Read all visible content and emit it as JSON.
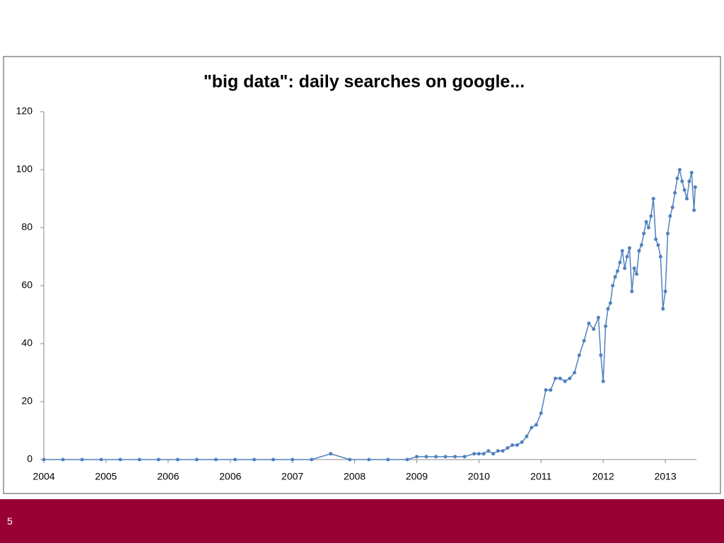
{
  "chart_data": {
    "type": "line",
    "title": "\"big data\": daily searches on google...",
    "x": [
      0,
      16,
      32,
      48,
      64,
      80,
      96,
      112,
      128,
      144,
      160,
      176,
      192,
      208,
      224,
      240,
      256,
      272,
      288,
      304,
      312,
      320,
      328,
      336,
      344,
      352,
      360,
      364,
      368,
      372,
      376,
      380,
      384,
      388,
      392,
      396,
      400,
      404,
      408,
      412,
      416,
      420,
      424,
      428,
      432,
      436,
      440,
      444,
      448,
      452,
      456,
      460,
      464,
      466,
      468,
      470,
      472,
      474,
      476,
      478,
      480,
      482,
      484,
      486,
      488,
      490,
      492,
      494,
      496,
      498,
      500,
      502,
      504,
      506,
      508,
      510,
      512,
      514,
      516,
      518,
      520,
      522,
      524,
      526,
      528,
      530,
      532,
      534,
      536,
      538,
      540,
      542,
      544,
      545
    ],
    "values": [
      0,
      0,
      0,
      0,
      0,
      0,
      0,
      0,
      0,
      0,
      0,
      0,
      0,
      0,
      0,
      2,
      0,
      0,
      0,
      0,
      1,
      1,
      1,
      1,
      1,
      1,
      2,
      2,
      2,
      3,
      2,
      3,
      3,
      4,
      5,
      5,
      6,
      8,
      11,
      12,
      16,
      24,
      24,
      28,
      28,
      27,
      28,
      30,
      36,
      41,
      47,
      45,
      49,
      36,
      27,
      46,
      52,
      54,
      60,
      63,
      65,
      68,
      72,
      66,
      70,
      73,
      58,
      66,
      64,
      72,
      74,
      78,
      82,
      80,
      84,
      90,
      76,
      74,
      70,
      52,
      58,
      78,
      84,
      87,
      92,
      97,
      100,
      96,
      93,
      90,
      96,
      99,
      86,
      94
    ],
    "color": "#4f81bd",
    "xlim": [
      0,
      546
    ],
    "xticks": [
      {
        "value": 0,
        "label": "2004"
      },
      {
        "value": 52,
        "label": "2005"
      },
      {
        "value": 104,
        "label": "2006"
      },
      {
        "value": 156,
        "label": "2006"
      },
      {
        "value": 208,
        "label": "2007"
      },
      {
        "value": 260,
        "label": "2008"
      },
      {
        "value": 312,
        "label": "2009"
      },
      {
        "value": 364,
        "label": "2010"
      },
      {
        "value": 416,
        "label": "2011"
      },
      {
        "value": 468,
        "label": "2012"
      },
      {
        "value": 520,
        "label": "2013"
      }
    ],
    "ylim": [
      0,
      120
    ],
    "yticks": [
      0,
      20,
      40,
      60,
      80,
      100,
      120
    ],
    "grid": false
  },
  "footer": {
    "slide_number": "5"
  }
}
